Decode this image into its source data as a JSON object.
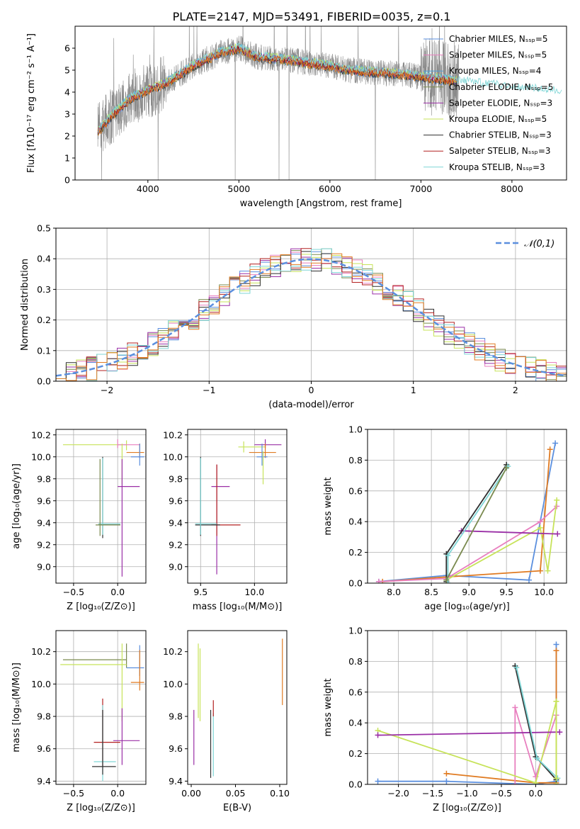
{
  "figure": {
    "title": "PLATE=2147, MJD=53491, FIBERID=0035, z=0.1"
  },
  "colors": {
    "series": [
      "#5b8fde",
      "#e87fbf",
      "#4f9fd8",
      "#7a8a4f",
      "#9a2fa6",
      "#c7e35a",
      "#2f2f2f",
      "#b32020",
      "#7fd6d6"
    ],
    "extra": [
      "#e07b22",
      "#8a8a8a"
    ]
  },
  "legend_entries": [
    "Chabrier MILES, Nₛₛₚ=5",
    "Salpeter MILES, Nₛₛₚ=5",
    "Kroupa MILES, Nₛₛₚ=4",
    "Chabrier ELODIE, Nₛₛₚ=5",
    "Salpeter ELODIE, Nₛₛₚ=3",
    "Kroupa ELODIE, Nₛₛₚ=5",
    "Chabrier STELIB, Nₛₛₚ=3",
    "Salpeter STELIB, Nₛₛₚ=3",
    "Kroupa STELIB, Nₛₛₚ=3"
  ],
  "chart_data": [
    {
      "id": "spectrum",
      "type": "line",
      "xlabel": "wavelength [Angstrom, rest frame]",
      "ylabel": "Flux [fλ10⁻¹⁷ erg cm⁻² s⁻¹ A⁻¹]",
      "xlim": [
        3200,
        8600
      ],
      "ylim": [
        0,
        7
      ],
      "xticks": [
        4000,
        5000,
        6000,
        7000,
        8000
      ],
      "yticks": [
        0,
        1,
        2,
        3,
        4,
        5,
        6
      ],
      "grid": false,
      "legend": "top-right",
      "data_continuum": {
        "x": [
          3450,
          3600,
          3800,
          4000,
          4200,
          4500,
          4800,
          5000,
          5200,
          5500,
          5800,
          6000,
          6200,
          6500,
          6800,
          7000,
          7200,
          7400,
          7600,
          7800,
          8000,
          8300,
          8550
        ],
        "y": [
          2.2,
          2.9,
          3.7,
          4.1,
          4.4,
          5.2,
          5.8,
          6.0,
          5.6,
          5.5,
          5.3,
          5.2,
          5.0,
          4.9,
          4.8,
          4.7,
          4.6,
          4.5,
          4.4,
          4.3,
          4.2,
          4.1,
          4.0
        ]
      }
    },
    {
      "id": "residuals",
      "type": "line",
      "xlabel": "(data-model)/error",
      "ylabel": "Normed distribution",
      "xlim": [
        -2.5,
        2.5
      ],
      "ylim": [
        0,
        0.5
      ],
      "xticks": [
        -2,
        -1,
        0,
        1,
        2
      ],
      "yticks": [
        0.0,
        0.1,
        0.2,
        0.3,
        0.4,
        0.5
      ],
      "grid": true,
      "legend": "top-right",
      "legend_label": "𝒩(0,1)",
      "gaussian": {
        "mean": 0,
        "sigma": 1,
        "color": "#5b8fde"
      }
    },
    {
      "id": "age_vs_Z",
      "type": "scatter",
      "xlabel": "Z [log₁₀(Z/Z⊙)]",
      "ylabel": "age  [log₁₀(age/yr)]",
      "xlim": [
        -0.7,
        0.32
      ],
      "ylim": [
        8.85,
        10.25
      ],
      "xticks": [
        -0.5,
        0.0
      ],
      "yticks": [
        9.0,
        9.2,
        9.4,
        9.6,
        9.8,
        10.0,
        10.2
      ],
      "grid": true,
      "errorbars": [
        {
          "x": 0.1,
          "y": 10.11,
          "xerr": [
            0.72,
            0.0
          ],
          "yerr": [
            0.05,
            0.04
          ],
          "c": 5
        },
        {
          "x": 0.0,
          "y": 10.11,
          "xerr": [
            0.0,
            0.25
          ],
          "yerr": [
            0.03,
            0.05
          ],
          "c": 1
        },
        {
          "x": 0.25,
          "y": 10.04,
          "xerr": [
            0.15,
            0.05
          ],
          "yerr": [
            0.05,
            0.08
          ],
          "c": 9
        },
        {
          "x": 0.25,
          "y": 10.0,
          "xerr": [
            0.1,
            0.05
          ],
          "yerr": [
            0.08,
            0.12
          ],
          "c": 0
        },
        {
          "x": 0.05,
          "y": 10.0,
          "xerr": [
            0.0,
            0.0
          ],
          "yerr": [
            0.25,
            0.12
          ],
          "c": 5
        },
        {
          "x": 0.05,
          "y": 9.73,
          "xerr": [
            0.05,
            0.2
          ],
          "yerr": [
            0.82,
            0.25
          ],
          "c": 4
        },
        {
          "x": -0.17,
          "y": 9.38,
          "xerr": [
            0.05,
            0.2
          ],
          "yerr": [
            0.12,
            0.62
          ],
          "c": 6
        },
        {
          "x": -0.17,
          "y": 9.39,
          "xerr": [
            0.05,
            0.2
          ],
          "yerr": [
            0.1,
            0.6
          ],
          "c": 8
        },
        {
          "x": -0.2,
          "y": 9.38,
          "xerr": [
            0.05,
            0.23
          ],
          "yerr": [
            0.1,
            0.6
          ],
          "c": 3
        }
      ]
    },
    {
      "id": "age_vs_mass",
      "type": "scatter",
      "xlabel": "mass [log₁₀(M/M⊙)]",
      "ylabel": "",
      "xlim": [
        9.38,
        10.3
      ],
      "ylim": [
        8.85,
        10.25
      ],
      "xticks": [
        9.5,
        10.0
      ],
      "yticks": [
        9.0,
        9.2,
        9.4,
        9.6,
        9.8,
        10.0,
        10.2
      ],
      "grid": true,
      "errorbars": [
        {
          "x": 9.9,
          "y": 10.09,
          "xerr": [
            0.05,
            0.2
          ],
          "yerr": [
            0.05,
            0.05
          ],
          "c": 5
        },
        {
          "x": 10.1,
          "y": 10.11,
          "xerr": [
            0.1,
            0.15
          ],
          "yerr": [
            0.03,
            0.05
          ],
          "c": 4
        },
        {
          "x": 10.1,
          "y": 10.04,
          "xerr": [
            0.15,
            0.1
          ],
          "yerr": [
            0.05,
            0.08
          ],
          "c": 9
        },
        {
          "x": 10.07,
          "y": 10.0,
          "xerr": [
            0.05,
            0.05
          ],
          "yerr": [
            0.08,
            0.12
          ],
          "c": 0
        },
        {
          "x": 10.08,
          "y": 9.95,
          "xerr": [
            0.0,
            0.0
          ],
          "yerr": [
            0.2,
            0.1
          ],
          "c": 5
        },
        {
          "x": 9.65,
          "y": 9.73,
          "xerr": [
            0.05,
            0.12
          ],
          "yerr": [
            0.8,
            0.2
          ],
          "c": 4
        },
        {
          "x": 9.65,
          "y": 9.38,
          "xerr": [
            0.05,
            0.22
          ],
          "yerr": [
            0.1,
            0.55
          ],
          "c": 7
        },
        {
          "x": 9.5,
          "y": 9.38,
          "xerr": [
            0.05,
            0.18
          ],
          "yerr": [
            0.1,
            0.62
          ],
          "c": 6
        },
        {
          "x": 9.5,
          "y": 9.39,
          "xerr": [
            0.05,
            0.15
          ],
          "yerr": [
            0.1,
            0.6
          ],
          "c": 8
        }
      ]
    },
    {
      "id": "massweight_vs_age",
      "type": "line",
      "xlabel": "age  [log₁₀(age/yr)]",
      "ylabel": "mass weight",
      "xlim": [
        7.65,
        10.3
      ],
      "ylim": [
        0,
        1
      ],
      "xticks": [
        8.0,
        8.5,
        9.0,
        9.5,
        10.0
      ],
      "yticks": [
        0.0,
        0.2,
        0.4,
        0.6,
        0.8,
        1.0
      ],
      "grid": true,
      "series": [
        {
          "c": 0,
          "x": [
            7.8,
            8.7,
            9.8,
            10.15
          ],
          "y": [
            0.01,
            0.05,
            0.02,
            0.91
          ]
        },
        {
          "c": 9,
          "x": [
            7.85,
            8.7,
            9.95,
            10.08
          ],
          "y": [
            0.01,
            0.04,
            0.08,
            0.87
          ]
        },
        {
          "c": 1,
          "x": [
            7.8,
            8.7,
            9.95,
            10.17
          ],
          "y": [
            0.01,
            0.03,
            0.4,
            0.5
          ]
        },
        {
          "c": 5,
          "x": [
            8.7,
            9.95,
            10.05,
            10.17
          ],
          "y": [
            0.02,
            0.36,
            0.08,
            0.54
          ]
        },
        {
          "c": 4,
          "x": [
            8.9,
            10.18
          ],
          "y": [
            0.34,
            0.32
          ]
        },
        {
          "c": 6,
          "x": [
            8.7,
            8.7,
            9.5
          ],
          "y": [
            0.01,
            0.19,
            0.77
          ]
        },
        {
          "c": 8,
          "x": [
            8.72,
            8.72,
            9.52
          ],
          "y": [
            0.0,
            0.18,
            0.76
          ]
        },
        {
          "c": 3,
          "x": [
            8.7,
            9.5
          ],
          "y": [
            0.02,
            0.75
          ]
        }
      ]
    },
    {
      "id": "mass_vs_Z",
      "type": "scatter",
      "xlabel": "Z [log₁₀(Z/Z⊙)]",
      "ylabel": "mass [log₁₀(M/M⊙)]",
      "xlim": [
        -0.7,
        0.32
      ],
      "ylim": [
        9.38,
        10.33
      ],
      "xticks": [
        -0.5,
        0.0
      ],
      "yticks": [
        9.4,
        9.6,
        9.8,
        10.0,
        10.2
      ],
      "grid": true,
      "errorbars": [
        {
          "x": 0.1,
          "y": 10.15,
          "xerr": [
            0.72,
            0.0
          ],
          "yerr": [
            0.05,
            0.1
          ],
          "c": 3
        },
        {
          "x": 0.25,
          "y": 10.1,
          "xerr": [
            0.15,
            0.05
          ],
          "yerr": [
            0.05,
            0.14
          ],
          "c": 0
        },
        {
          "x": 0.1,
          "y": 10.12,
          "xerr": [
            0.75,
            0.0
          ],
          "yerr": [
            0.0,
            0.0
          ],
          "c": 5
        },
        {
          "x": 0.05,
          "y": 10.05,
          "xerr": [
            0.0,
            0.0
          ],
          "yerr": [
            0.28,
            0.2
          ],
          "c": 5
        },
        {
          "x": 0.25,
          "y": 10.01,
          "xerr": [
            0.1,
            0.05
          ],
          "yerr": [
            0.05,
            0.2
          ],
          "c": 9
        },
        {
          "x": 0.05,
          "y": 9.65,
          "xerr": [
            0.1,
            0.2
          ],
          "yerr": [
            0.15,
            0.2
          ],
          "c": 4
        },
        {
          "x": -0.17,
          "y": 9.64,
          "xerr": [
            0.1,
            0.2
          ],
          "yerr": [
            0.15,
            0.27
          ],
          "c": 7
        },
        {
          "x": -0.17,
          "y": 9.52,
          "xerr": [
            0.1,
            0.15
          ],
          "yerr": [
            0.12,
            0.35
          ],
          "c": 8
        },
        {
          "x": -0.17,
          "y": 9.49,
          "xerr": [
            0.12,
            0.15
          ],
          "yerr": [
            0.05,
            0.35
          ],
          "c": 6
        }
      ]
    },
    {
      "id": "mass_vs_EBV",
      "type": "scatter",
      "xlabel": "E(B-V)",
      "ylabel": "",
      "xlim": [
        -0.004,
        0.108
      ],
      "ylim": [
        9.38,
        10.33
      ],
      "xticks": [
        0.0,
        0.05,
        0.1
      ],
      "yticks": [
        9.4,
        9.6,
        9.8,
        10.0,
        10.2
      ],
      "grid": false,
      "vbars": [
        {
          "x": 0.003,
          "y0": 9.5,
          "y1": 9.84,
          "c": 4
        },
        {
          "x": 0.008,
          "y0": 9.79,
          "y1": 10.25,
          "c": 5
        },
        {
          "x": 0.01,
          "y0": 9.77,
          "y1": 10.22,
          "c": 5
        },
        {
          "x": 0.022,
          "y0": 9.42,
          "y1": 9.84,
          "c": 6
        },
        {
          "x": 0.025,
          "y0": 9.43,
          "y1": 9.82,
          "c": 8
        },
        {
          "x": 0.025,
          "y0": 9.8,
          "y1": 9.9,
          "c": 7
        },
        {
          "x": 0.103,
          "y0": 9.87,
          "y1": 10.28,
          "c": 9
        }
      ]
    },
    {
      "id": "massweight_vs_Z",
      "type": "line",
      "xlabel": "Z [log₁₀(Z/Z⊙)]",
      "ylabel": "mass weight",
      "xlim": [
        -2.45,
        0.45
      ],
      "ylim": [
        0,
        1
      ],
      "xticks": [
        -2.0,
        -1.5,
        -1.0,
        -0.5,
        0.0
      ],
      "yticks": [
        0.0,
        0.2,
        0.4,
        0.6,
        0.8,
        1.0
      ],
      "grid": true,
      "series": [
        {
          "c": 0,
          "x": [
            -2.3,
            -1.3,
            0.0,
            0.3,
            0.3
          ],
          "y": [
            0.02,
            0.02,
            0.0,
            0.02,
            0.91
          ]
        },
        {
          "c": 9,
          "x": [
            -1.3,
            0.0,
            0.3,
            0.3
          ],
          "y": [
            0.07,
            0.01,
            0.01,
            0.87
          ]
        },
        {
          "c": 1,
          "x": [
            -0.3,
            -0.3,
            0.0,
            0.3
          ],
          "y": [
            0.0,
            0.5,
            0.05,
            0.45
          ]
        },
        {
          "c": 5,
          "x": [
            -2.3,
            0.0,
            0.3,
            0.3
          ],
          "y": [
            0.35,
            0.01,
            0.54,
            0.0
          ]
        },
        {
          "c": 4,
          "x": [
            -2.3,
            0.35
          ],
          "y": [
            0.32,
            0.34
          ]
        },
        {
          "c": 6,
          "x": [
            -0.3,
            0.0,
            0.3
          ],
          "y": [
            0.77,
            0.18,
            0.03
          ]
        },
        {
          "c": 8,
          "x": [
            -0.28,
            0.02,
            0.32
          ],
          "y": [
            0.76,
            0.17,
            0.04
          ]
        },
        {
          "c": 5,
          "x": [
            0.3,
            0.3
          ],
          "y": [
            0.04,
            0.54
          ]
        }
      ]
    }
  ]
}
